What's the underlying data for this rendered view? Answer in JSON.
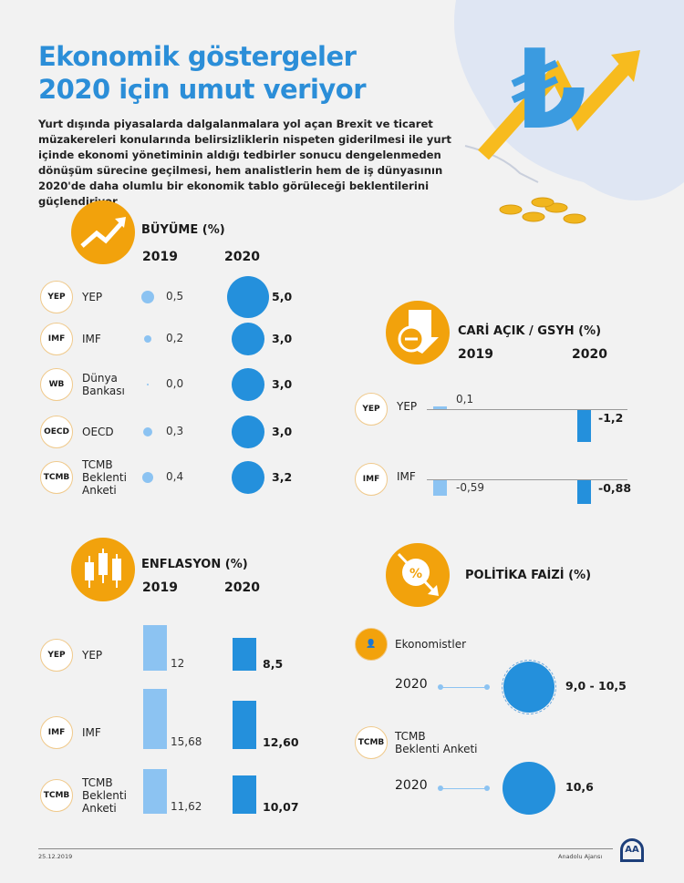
{
  "header": {
    "title_line1": "Ekonomik göstergeler",
    "title_line2": "2020 için umut veriyor",
    "intro": "Yurt dışında piyasalarda dalgalanmalara yol açan Brexit ve ticaret müzakereleri konularında belirsizliklerin nispeten giderilmesi ile yurt içinde ekonomi yönetiminin aldığı tedbirler sonucu dengelenmeden dönüşüm sürecine geçilmesi, hem analistlerin hem de iş dünyasının 2020'de daha olumlu bir ekonomik tablo görüleceği beklentilerini güçlendiriyor"
  },
  "colors": {
    "title": "#2b8ed8",
    "accent_orange": "#f2a20c",
    "bar_2019": "#8cc3f2",
    "bar_2020": "#2490dc"
  },
  "chart_data": [
    {
      "type": "bubble",
      "title": "BÜYÜME (%)",
      "columns": [
        "2019",
        "2020"
      ],
      "categories": [
        "YEP",
        "IMF",
        "Dünya Bankası",
        "OECD",
        "TCMB Beklenti Anketi"
      ],
      "series": [
        {
          "name": "2019",
          "values": [
            0.5,
            0.2,
            0.0,
            0.3,
            0.4
          ],
          "labels": [
            "0,5",
            "0,2",
            "0,0",
            "0,3",
            "0,4"
          ]
        },
        {
          "name": "2020",
          "values": [
            5.0,
            3.0,
            3.0,
            3.0,
            3.2
          ],
          "labels": [
            "5,0",
            "3,0",
            "3,0",
            "3,0",
            "3,2"
          ]
        }
      ]
    },
    {
      "type": "bar",
      "title": "CARİ AÇIK / GSYH (%)",
      "columns": [
        "2019",
        "2020"
      ],
      "categories": [
        "YEP",
        "IMF"
      ],
      "series": [
        {
          "name": "2019",
          "values": [
            0.1,
            -0.59
          ],
          "labels": [
            "0,1",
            "-0,59"
          ]
        },
        {
          "name": "2020",
          "values": [
            -1.2,
            -0.88
          ],
          "labels": [
            "-1,2",
            "-0,88"
          ]
        }
      ]
    },
    {
      "type": "bar",
      "title": "ENFLASYON (%)",
      "columns": [
        "2019",
        "2020"
      ],
      "categories": [
        "YEP",
        "IMF",
        "TCMB Beklenti Anketi"
      ],
      "series": [
        {
          "name": "2019",
          "values": [
            12,
            15.68,
            11.62
          ],
          "labels": [
            "12",
            "15,68",
            "11,62"
          ]
        },
        {
          "name": "2020",
          "values": [
            8.5,
            12.6,
            10.07
          ],
          "labels": [
            "8,5",
            "12,60",
            "10,07"
          ]
        }
      ]
    },
    {
      "type": "bubble",
      "title": "POLİTİKA FAİZİ (%)",
      "categories": [
        "Ekonomistler",
        "TCMB Beklenti Anketi"
      ],
      "series": [
        {
          "name": "2020",
          "values": [
            [
              9.0,
              10.5
            ],
            10.6
          ],
          "labels": [
            "9,0 - 10,5",
            "10,6"
          ]
        }
      ],
      "year_label": "2020"
    }
  ],
  "growth_labels": [
    [
      "YEP"
    ],
    [
      "IMF"
    ],
    [
      "Dünya",
      "Bankası"
    ],
    [
      "OECD"
    ],
    [
      "TCMB",
      "Beklenti",
      "Anketi"
    ]
  ],
  "inflation_labels": [
    [
      "YEP"
    ],
    [
      "IMF"
    ],
    [
      "TCMB",
      "Beklenti",
      "Anketi"
    ]
  ],
  "policy_labels": [
    [
      "Ekonomistler"
    ],
    [
      "TCMB",
      "Beklenti Anketi"
    ]
  ],
  "logos": {
    "YEP": "YEP",
    "IMF": "IMF",
    "WB": "WB",
    "OECD": "OECD",
    "TCMB": "TCMB"
  },
  "footer": {
    "date": "25.12.2019",
    "source": "Anadolu Ajansı",
    "logo_text": "AA"
  }
}
